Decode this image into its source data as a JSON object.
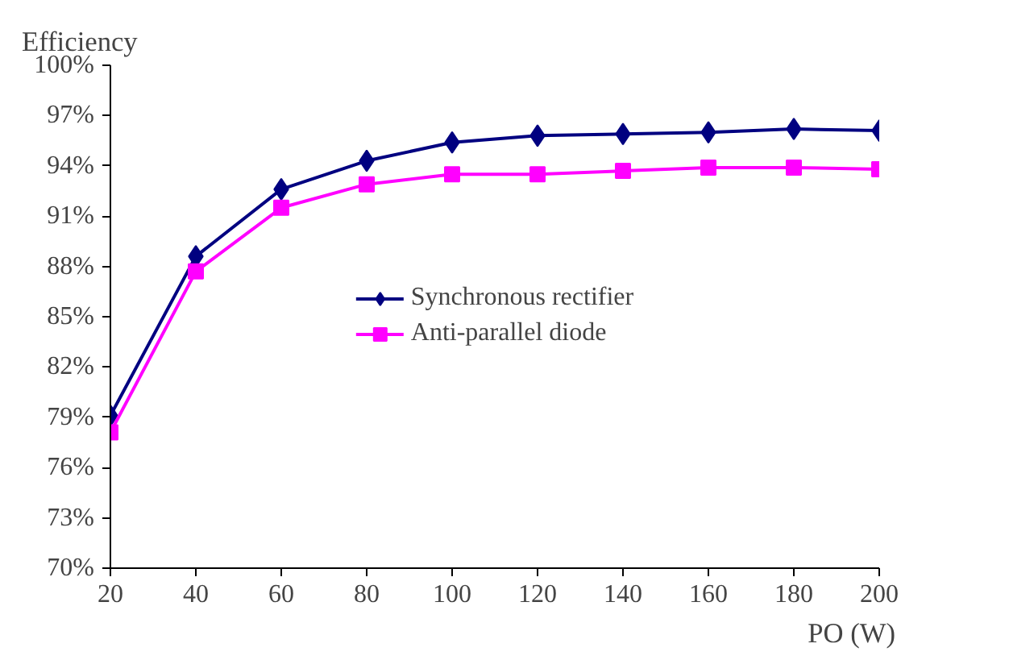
{
  "chart_data": {
    "type": "line",
    "ylabel": "Efficiency",
    "xlabel": "PO (W)",
    "x": [
      20,
      40,
      60,
      80,
      100,
      120,
      140,
      160,
      180,
      200
    ],
    "series": [
      {
        "name": "Synchronous rectifier",
        "color": "#000080",
        "marker": "diamond",
        "values": [
          79.1,
          88.6,
          92.6,
          94.3,
          95.4,
          95.8,
          95.9,
          96.0,
          96.2,
          96.1
        ]
      },
      {
        "name": "Anti-parallel diode",
        "color": "#ff00ff",
        "marker": "square",
        "values": [
          78.1,
          87.7,
          91.5,
          92.9,
          93.5,
          93.5,
          93.7,
          93.9,
          93.9,
          93.8
        ]
      }
    ],
    "xlim": [
      20,
      200
    ],
    "xticks": [
      20,
      40,
      60,
      80,
      100,
      120,
      140,
      160,
      180,
      200
    ],
    "ylim": [
      70,
      100
    ],
    "yticks": [
      {
        "value": 70,
        "label": "70%"
      },
      {
        "value": 73,
        "label": "73%"
      },
      {
        "value": 76,
        "label": "76%"
      },
      {
        "value": 79,
        "label": "79%"
      },
      {
        "value": 82,
        "label": "82%"
      },
      {
        "value": 85,
        "label": "85%"
      },
      {
        "value": 88,
        "label": "88%"
      },
      {
        "value": 91,
        "label": "91%"
      },
      {
        "value": 94,
        "label": "94%"
      },
      {
        "value": 97,
        "label": "97%"
      },
      {
        "value": 100,
        "label": "100%"
      }
    ],
    "grid": false,
    "legend": "center",
    "line_style": "solid"
  }
}
